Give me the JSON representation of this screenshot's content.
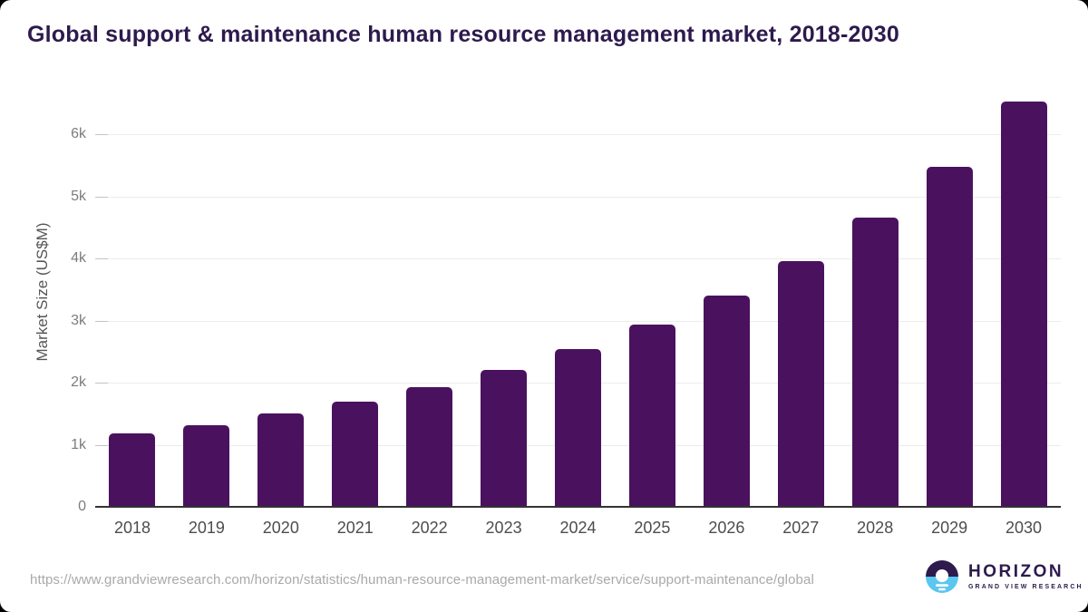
{
  "title": "Global support & maintenance human resource management market, 2018-2030",
  "chart_data": {
    "type": "bar",
    "title": "Global support & maintenance human resource management market, 2018-2030",
    "xlabel": "",
    "ylabel": "Market Size (US$M)",
    "categories": [
      "2018",
      "2019",
      "2020",
      "2021",
      "2022",
      "2023",
      "2024",
      "2025",
      "2026",
      "2027",
      "2028",
      "2029",
      "2030"
    ],
    "values": [
      1180,
      1310,
      1500,
      1690,
      1920,
      2200,
      2540,
      2930,
      3400,
      3950,
      4650,
      5480,
      6530
    ],
    "unit": "US$M",
    "ylim": [
      0,
      6700
    ],
    "yticks": [
      {
        "value": 0,
        "label": "0"
      },
      {
        "value": 1000,
        "label": "1k"
      },
      {
        "value": 2000,
        "label": "2k"
      },
      {
        "value": 3000,
        "label": "3k"
      },
      {
        "value": 4000,
        "label": "4k"
      },
      {
        "value": 5000,
        "label": "5k"
      },
      {
        "value": 6000,
        "label": "6k"
      }
    ],
    "grid": true,
    "legend": false,
    "bar_color": "#4a125e"
  },
  "footer": {
    "source_url": "https://www.grandviewresearch.com/horizon/statistics/human-resource-management-market/service/support-maintenance/global",
    "logo": {
      "name": "HORIZON",
      "subtitle": "GRAND VIEW RESEARCH"
    }
  },
  "colors": {
    "bar": "#4a125e",
    "title_text": "#2d1a4d",
    "axis_line": "#333333",
    "gridline": "#ececec",
    "tick": "#c4c4c4",
    "y_tick_text": "#7c7c7c",
    "x_tick_text": "#4d4d4d",
    "url_text": "#a9a9a9",
    "logo_purple": "#2d1b4e",
    "logo_blue": "#5bc6f0"
  }
}
